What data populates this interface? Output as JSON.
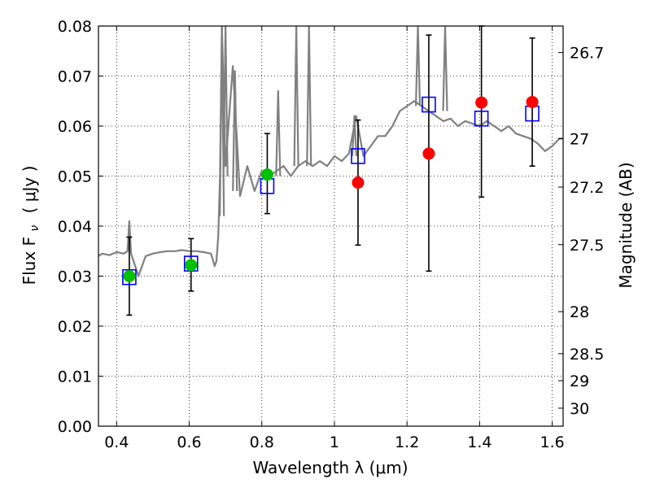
{
  "chart_data": {
    "type": "scatter",
    "title": "",
    "xlabel": "Wavelength  λ (μm)",
    "ylabel_left": "Flux  F",
    "ylabel_left_sub": "ν",
    "ylabel_left_unit": "( μJy )",
    "ylabel_right": "Magnitude (AB)",
    "xlim": [
      0.35,
      1.63
    ],
    "ylim": [
      0.0,
      0.08
    ],
    "grid": true,
    "x_ticks": [
      0.4,
      0.6,
      0.8,
      1.0,
      1.2,
      1.4,
      1.6
    ],
    "x_tick_labels": [
      "0.4",
      "0.6",
      "0.8",
      "1",
      "1.2",
      "1.4",
      "1.6"
    ],
    "y_ticks": [
      0.0,
      0.01,
      0.02,
      0.03,
      0.04,
      0.05,
      0.06,
      0.07,
      0.08
    ],
    "y_tick_labels": [
      "0.00",
      "0.01",
      "0.02",
      "0.03",
      "0.04",
      "0.05",
      "0.06",
      "0.07",
      "0.08"
    ],
    "right_ticks": [
      {
        "label": "26.7",
        "flux": 0.0747
      },
      {
        "label": "27",
        "flux": 0.0575
      },
      {
        "label": "27.2",
        "flux": 0.0478
      },
      {
        "label": "27.5",
        "flux": 0.0363
      },
      {
        "label": "28",
        "flux": 0.0229
      },
      {
        "label": "28.5",
        "flux": 0.0145
      },
      {
        "label": "29",
        "flux": 0.0091
      },
      {
        "label": "30",
        "flux": 0.0036
      }
    ],
    "colors": {
      "spectrum": "#808080",
      "model": "#0000ff",
      "detected": "#00c000",
      "undetected": "#ff0000",
      "errorbar": "#000000",
      "grid": "#000000"
    },
    "spectrum": {
      "name": "",
      "x": [
        0.35,
        0.36,
        0.38,
        0.4,
        0.42,
        0.43,
        0.435,
        0.44,
        0.46,
        0.48,
        0.5,
        0.52,
        0.54,
        0.56,
        0.58,
        0.6,
        0.62,
        0.64,
        0.66,
        0.67,
        0.675,
        0.68,
        0.685,
        0.69,
        0.7,
        0.72,
        0.74,
        0.76,
        0.78,
        0.8,
        0.82,
        0.84,
        0.86,
        0.88,
        0.9,
        0.92,
        0.94,
        0.96,
        0.98,
        1.0,
        1.02,
        1.04,
        1.06,
        1.08,
        1.1,
        1.12,
        1.14,
        1.16,
        1.18,
        1.2,
        1.22,
        1.24,
        1.26,
        1.28,
        1.3,
        1.32,
        1.34,
        1.36,
        1.38,
        1.4,
        1.42,
        1.44,
        1.46,
        1.48,
        1.5,
        1.52,
        1.54,
        1.56,
        1.58,
        1.6,
        1.62,
        1.63
      ],
      "y": [
        0.034,
        0.0345,
        0.0342,
        0.0348,
        0.0345,
        0.035,
        0.041,
        0.0345,
        0.03,
        0.034,
        0.0345,
        0.0348,
        0.035,
        0.035,
        0.0352,
        0.035,
        0.035,
        0.0348,
        0.0345,
        0.032,
        0.033,
        0.038,
        0.05,
        0.08,
        0.052,
        0.072,
        0.046,
        0.052,
        0.047,
        0.051,
        0.05,
        0.051,
        0.052,
        0.05,
        0.052,
        0.053,
        0.052,
        0.053,
        0.052,
        0.054,
        0.053,
        0.0545,
        0.062,
        0.054,
        0.056,
        0.058,
        0.058,
        0.06,
        0.063,
        0.064,
        0.065,
        0.064,
        0.063,
        0.062,
        0.061,
        0.0615,
        0.06,
        0.061,
        0.0605,
        0.06,
        0.061,
        0.06,
        0.059,
        0.06,
        0.0585,
        0.058,
        0.0575,
        0.0565,
        0.055,
        0.056,
        0.0575,
        0.0575
      ]
    },
    "spectrum_lines": [
      {
        "x": 0.69,
        "top": 0.08,
        "base": 0.042
      },
      {
        "x": 0.7,
        "top": 0.08,
        "base": 0.05
      },
      {
        "x": 0.726,
        "top": 0.071,
        "base": 0.047
      },
      {
        "x": 0.845,
        "top": 0.067,
        "base": 0.05
      },
      {
        "x": 0.895,
        "top": 0.08,
        "base": 0.052
      },
      {
        "x": 0.93,
        "top": 0.08,
        "base": 0.052
      },
      {
        "x": 1.055,
        "top": 0.062,
        "base": 0.054
      },
      {
        "x": 1.23,
        "top": 0.08,
        "base": 0.064
      },
      {
        "x": 1.305,
        "top": 0.08,
        "base": 0.063
      }
    ],
    "series": [
      {
        "name": "",
        "marker": "open-square",
        "x": [
          0.435,
          0.605,
          0.815,
          1.065,
          1.26,
          1.405,
          1.545
        ],
        "y": [
          0.0298,
          0.0325,
          0.048,
          0.054,
          0.0643,
          0.0615,
          0.0625
        ]
      },
      {
        "name": "",
        "marker": "filled-circle-green",
        "x": [
          0.435,
          0.605,
          0.815
        ],
        "y": [
          0.03,
          0.0322,
          0.0503
        ],
        "yerr_low": [
          0.0222,
          0.027,
          0.0425
        ],
        "yerr_high": [
          0.0378,
          0.0375,
          0.0585
        ]
      },
      {
        "name": "",
        "marker": "filled-circle-red",
        "x": [
          1.065,
          1.26,
          1.405,
          1.545
        ],
        "y": [
          0.0487,
          0.0545,
          0.0647,
          0.0648
        ],
        "yerr_low": [
          0.0362,
          0.031,
          0.0458,
          0.052
        ],
        "yerr_high": [
          0.0612,
          0.0782,
          0.08,
          0.0776
        ]
      }
    ]
  }
}
